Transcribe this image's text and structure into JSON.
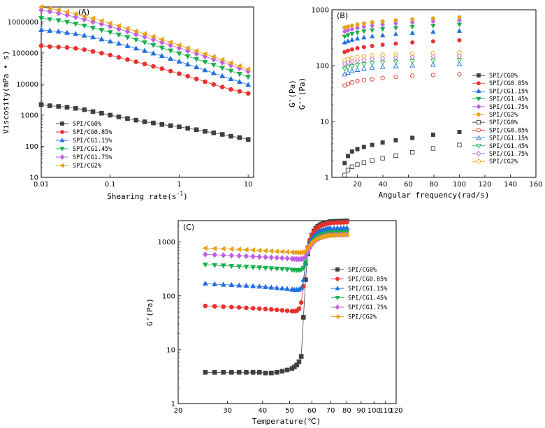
{
  "figure": {
    "description_labels": [
      "(A)",
      "(B)",
      "(C)"
    ]
  },
  "chart_data": [
    {
      "type": "scatter",
      "title": "(A)",
      "xlabel": "Shearing rate(s",
      "xlabel_sup": "-1",
      "xlabel_close": ")",
      "ylabel": "Viscosity(mPa • s)",
      "xscale": "log",
      "yscale": "log",
      "xlim": [
        0.01,
        12
      ],
      "ylim": [
        10,
        3000000
      ],
      "xticks": [
        {
          "v": 0.01,
          "label": "0.01"
        },
        {
          "v": 0.1,
          "label": "0.1"
        },
        {
          "v": 1,
          "label": "1"
        },
        {
          "v": 10,
          "label": "10"
        }
      ],
      "yticks": [
        {
          "v": 10,
          "label": "10"
        },
        {
          "v": 100,
          "label": "100"
        },
        {
          "v": 1000,
          "label": "1000"
        },
        {
          "v": 10000,
          "label": "10000"
        },
        {
          "v": 100000,
          "label": "100000"
        },
        {
          "v": 1000000,
          "label": "1000000"
        }
      ],
      "legend_position": "bottom-left",
      "x": [
        0.01,
        0.0133,
        0.0178,
        0.0237,
        0.0316,
        0.0422,
        0.0562,
        0.075,
        0.1,
        0.133,
        0.178,
        0.237,
        0.316,
        0.422,
        0.562,
        0.75,
        1,
        1.33,
        1.78,
        2.37,
        3.16,
        4.22,
        5.62,
        7.5,
        10
      ],
      "series": [
        {
          "name": "SPI/CG0%",
          "color": "#404040",
          "marker": "square",
          "values": [
            2200,
            2000,
            1900,
            1800,
            1650,
            1500,
            1300,
            1150,
            1000,
            880,
            780,
            690,
            610,
            560,
            500,
            460,
            420,
            380,
            340,
            300,
            270,
            240,
            210,
            190,
            165
          ]
        },
        {
          "name": "SPI/CG0.85%",
          "color": "#e8322d",
          "marker": "circle",
          "values": [
            170000,
            160000,
            155000,
            150000,
            140000,
            128000,
            112000,
            98000,
            85000,
            72000,
            61000,
            52000,
            44000,
            37000,
            31000,
            26000,
            21500,
            17800,
            14600,
            11900,
            9700,
            8000,
            6700,
            5800,
            5000
          ]
        },
        {
          "name": "SPI/CG1.15%",
          "color": "#1f6fe0",
          "marker": "triangle-up",
          "values": [
            550000,
            520000,
            490000,
            450000,
            410000,
            365000,
            320000,
            275000,
            235000,
            200000,
            168000,
            140000,
            117000,
            97000,
            80000,
            65000,
            53000,
            43000,
            35000,
            28000,
            22500,
            18000,
            14500,
            11800,
            9500
          ]
        },
        {
          "name": "SPI/CG1.45%",
          "color": "#15b04a",
          "marker": "triangle-down",
          "values": [
            1300000,
            1200000,
            1100000,
            980000,
            860000,
            750000,
            640000,
            540000,
            460000,
            385000,
            320000,
            265000,
            218000,
            178000,
            145000,
            118000,
            96000,
            78000,
            63000,
            51000,
            41000,
            33000,
            26500,
            21000,
            17000
          ]
        },
        {
          "name": "SPI/CG1.75%",
          "color": "#c060e6",
          "marker": "diamond",
          "values": [
            2400000,
            2150000,
            1900000,
            1650000,
            1420000,
            1200000,
            1000000,
            850000,
            710000,
            590000,
            490000,
            400000,
            330000,
            268000,
            218000,
            177000,
            144000,
            117000,
            95000,
            77000,
            62000,
            50000,
            40000,
            32000,
            25500
          ]
        },
        {
          "name": "SPI/CG2%",
          "color": "#e8a21a",
          "marker": "triangle-left",
          "values": [
            3000000,
            2700000,
            2400000,
            2100000,
            1800000,
            1520000,
            1280000,
            1070000,
            890000,
            740000,
            610000,
            500000,
            410000,
            335000,
            272000,
            220000,
            178000,
            144000,
            116000,
            93000,
            75000,
            60000,
            48000,
            38000,
            30000
          ]
        }
      ]
    },
    {
      "type": "scatter",
      "title": "(B)",
      "xlabel": "Angular frequency(rad/s)",
      "ylabel_1": "G'(Pa)",
      "ylabel_2": "G''(Pa)",
      "xscale": "linear",
      "yscale": "log",
      "xlim": [
        0,
        160
      ],
      "ylim": [
        1,
        1000
      ],
      "xticks": [
        {
          "v": 20,
          "label": "20"
        },
        {
          "v": 40,
          "label": "40"
        },
        {
          "v": 60,
          "label": "60"
        },
        {
          "v": 80,
          "label": "80"
        },
        {
          "v": 100,
          "label": "100"
        },
        {
          "v": 120,
          "label": "120"
        },
        {
          "v": 140,
          "label": "140"
        },
        {
          "v": 160,
          "label": "160"
        }
      ],
      "yticks": [
        {
          "v": 1,
          "label": "1"
        },
        {
          "v": 10,
          "label": "10"
        },
        {
          "v": 100,
          "label": "100"
        },
        {
          "v": 1000,
          "label": "1000"
        }
      ],
      "legend_position": "right",
      "x": [
        10,
        12.6,
        15.8,
        20,
        25.1,
        31.6,
        39.8,
        50.1,
        63.1,
        79.4,
        100
      ],
      "series": [
        {
          "name": "SPI/CG0%",
          "color": "#404040",
          "marker": "square",
          "filled": true,
          "values": [
            1.8,
            2.4,
            2.9,
            3.2,
            3.5,
            3.8,
            4.2,
            4.6,
            5.1,
            5.8,
            6.5
          ]
        },
        {
          "name": "SPI/CG0.85%",
          "color": "#e8322d",
          "marker": "circle",
          "filled": true,
          "values": [
            175,
            185,
            195,
            205,
            215,
            225,
            237,
            248,
            260,
            272,
            285
          ]
        },
        {
          "name": "SPI/CG1.15%",
          "color": "#1f6fe0",
          "marker": "triangle-up",
          "filled": true,
          "values": [
            260,
            275,
            290,
            305,
            320,
            335,
            350,
            367,
            385,
            402,
            420
          ]
        },
        {
          "name": "SPI/CG1.45%",
          "color": "#15b04a",
          "marker": "triangle-down",
          "filled": true,
          "values": [
            330,
            350,
            370,
            390,
            410,
            430,
            450,
            472,
            495,
            518,
            540
          ]
        },
        {
          "name": "SPI/CG1.75%",
          "color": "#c060e6",
          "marker": "diamond",
          "filled": true,
          "values": [
            410,
            430,
            452,
            475,
            498,
            520,
            545,
            570,
            598,
            625,
            650
          ]
        },
        {
          "name": "SPI/CG2%",
          "color": "#e8a21a",
          "marker": "circle",
          "filled": true,
          "values": [
            480,
            500,
            522,
            545,
            570,
            595,
            620,
            645,
            672,
            700,
            730
          ]
        },
        {
          "name": "SPI/CG0%",
          "color": "#404040",
          "marker": "square",
          "filled": false,
          "values": [
            1.1,
            1.35,
            1.55,
            1.7,
            1.85,
            2.0,
            2.2,
            2.45,
            2.8,
            3.3,
            3.8
          ]
        },
        {
          "name": "SPI/CG0.85%",
          "color": "#e8322d",
          "marker": "circle",
          "filled": false,
          "values": [
            44,
            47,
            50,
            53,
            55,
            57,
            60,
            63,
            66,
            68,
            70
          ]
        },
        {
          "name": "SPI/CG1.15%",
          "color": "#1f6fe0",
          "marker": "triangle-up",
          "filled": false,
          "values": [
            70,
            75,
            80,
            84,
            88,
            92,
            95,
            98,
            101,
            104,
            107
          ]
        },
        {
          "name": "SPI/CG1.45%",
          "color": "#15b04a",
          "marker": "triangle-down",
          "filled": false,
          "values": [
            88,
            93,
            98,
            102,
            106,
            110,
            114,
            117,
            120,
            123,
            126
          ]
        },
        {
          "name": "SPI/CG1.75%",
          "color": "#c060e6",
          "marker": "diamond",
          "filled": false,
          "values": [
            108,
            114,
            119,
            124,
            128,
            132,
            136,
            140,
            143,
            146,
            149
          ]
        },
        {
          "name": "SPI/CG2%",
          "color": "#e8a21a",
          "marker": "circle",
          "filled": false,
          "values": [
            125,
            131,
            137,
            142,
            147,
            152,
            156,
            160,
            164,
            168,
            172
          ]
        }
      ]
    },
    {
      "type": "line",
      "title": "(C)",
      "xlabel": "Temperature(℃)",
      "ylabel": "G'(Pa)",
      "xscale": "log",
      "yscale": "log",
      "xlim": [
        20,
        120
      ],
      "ylim": [
        1,
        2500
      ],
      "xticks": [
        {
          "v": 20,
          "label": "20"
        },
        {
          "v": 30,
          "label": "30"
        },
        {
          "v": 40,
          "label": "40"
        },
        {
          "v": 50,
          "label": "50"
        },
        {
          "v": 60,
          "label": "60"
        },
        {
          "v": 70,
          "label": "70"
        },
        {
          "v": 80,
          "label": "80"
        },
        {
          "v": 90,
          "label": "90"
        },
        {
          "v": 100,
          "label": "100"
        },
        {
          "v": 110,
          "label": "110"
        },
        {
          "v": 120,
          "label": "120"
        }
      ],
      "yticks": [
        {
          "v": 1,
          "label": "1"
        },
        {
          "v": 10,
          "label": "10"
        },
        {
          "v": 100,
          "label": "100"
        },
        {
          "v": 1000,
          "label": "1000"
        }
      ],
      "legend_position": "right",
      "x": [
        25,
        27,
        29,
        31,
        33,
        35,
        37,
        39,
        41,
        43,
        45,
        47,
        49,
        51,
        52,
        53,
        54,
        55,
        56,
        57,
        58,
        59,
        60,
        61,
        62,
        63,
        64,
        65,
        66,
        67,
        68,
        69,
        70,
        72,
        74,
        76,
        78,
        80
      ],
      "series": [
        {
          "name": "SPI/CG0%",
          "color": "#404040",
          "marker": "square",
          "values": [
            3.8,
            3.8,
            3.8,
            3.8,
            3.8,
            3.8,
            3.8,
            3.8,
            3.7,
            3.7,
            3.8,
            4.0,
            4.2,
            4.5,
            4.8,
            5.2,
            6.0,
            7.5,
            40,
            200,
            600,
            1000,
            1350,
            1600,
            1800,
            1950,
            2050,
            2150,
            2200,
            2250,
            2300,
            2350,
            2400,
            2420,
            2440,
            2450,
            2460,
            2470
          ]
        },
        {
          "name": "SPI/CG0.85%",
          "color": "#e8322d",
          "marker": "circle",
          "values": [
            65,
            64,
            63,
            62,
            61,
            60,
            59,
            58,
            57,
            56,
            55,
            54,
            53,
            52,
            52,
            53,
            58,
            75,
            150,
            400,
            800,
            1100,
            1350,
            1550,
            1700,
            1850,
            1950,
            2050,
            2100,
            2150,
            2200,
            2230,
            2260,
            2280,
            2300,
            2310,
            2320,
            2330
          ]
        },
        {
          "name": "SPI/CG1.15%",
          "color": "#1f6fe0",
          "marker": "triangle-up",
          "values": [
            170,
            165,
            162,
            160,
            157,
            155,
            152,
            150,
            147,
            144,
            141,
            138,
            135,
            132,
            130,
            130,
            132,
            140,
            200,
            400,
            700,
            950,
            1150,
            1300,
            1420,
            1520,
            1600,
            1660,
            1700,
            1730,
            1760,
            1780,
            1800,
            1810,
            1820,
            1830,
            1835,
            1840
          ]
        },
        {
          "name": "SPI/CG1.45%",
          "color": "#15b04a",
          "marker": "triangle-down",
          "values": [
            380,
            372,
            365,
            358,
            352,
            346,
            340,
            335,
            330,
            325,
            320,
            315,
            310,
            305,
            302,
            300,
            300,
            305,
            330,
            420,
            600,
            800,
            950,
            1080,
            1180,
            1260,
            1320,
            1370,
            1410,
            1440,
            1460,
            1480,
            1500,
            1510,
            1520,
            1525,
            1530,
            1535
          ]
        },
        {
          "name": "SPI/CG1.75%",
          "color": "#c060e6",
          "marker": "diamond",
          "values": [
            590,
            580,
            570,
            562,
            555,
            548,
            540,
            532,
            525,
            518,
            512,
            505,
            498,
            490,
            486,
            482,
            480,
            482,
            495,
            540,
            650,
            780,
            900,
            1000,
            1080,
            1150,
            1200,
            1240,
            1270,
            1300,
            1320,
            1340,
            1350,
            1360,
            1370,
            1375,
            1380,
            1385
          ]
        },
        {
          "name": "SPI/CG2%",
          "color": "#e8a21a",
          "marker": "triangle-left",
          "values": [
            770,
            760,
            750,
            740,
            730,
            720,
            710,
            700,
            690,
            680,
            672,
            664,
            656,
            648,
            644,
            640,
            638,
            640,
            650,
            690,
            780,
            880,
            980,
            1060,
            1120,
            1170,
            1210,
            1240,
            1270,
            1290,
            1310,
            1325,
            1340,
            1350,
            1360,
            1365,
            1370,
            1375
          ]
        }
      ]
    }
  ]
}
